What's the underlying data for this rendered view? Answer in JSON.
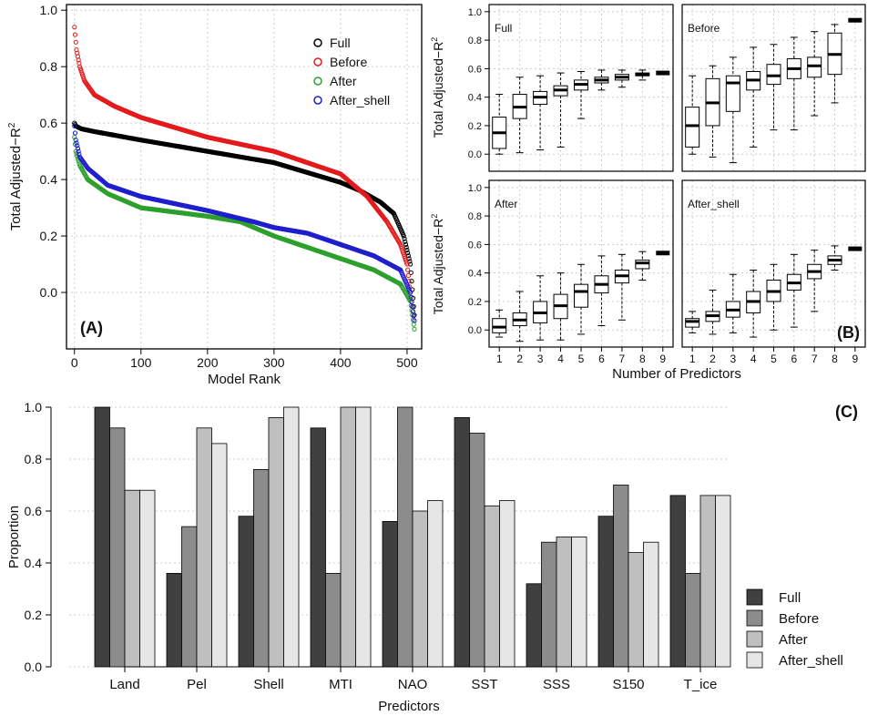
{
  "chart_data": [
    {
      "panel_label": "(A)",
      "type": "scatter",
      "xlabel": "Model Rank",
      "ylabel_main": "Total Adjusted−R",
      "ylabel_sup": "2",
      "xlim": [
        -12,
        522
      ],
      "ylim": [
        -0.2,
        1.02
      ],
      "xticks": [
        0,
        100,
        200,
        300,
        400,
        500
      ],
      "xtick_labels": [
        "0",
        "100",
        "200",
        "300",
        "400",
        "500"
      ],
      "yticks": [
        0.0,
        0.2,
        0.4,
        0.6,
        0.8,
        1.0
      ],
      "ytick_labels": [
        "0.0",
        "0.2",
        "0.4",
        "0.6",
        "0.8",
        "1.0"
      ],
      "n_models": 511,
      "legend_position": "top-right",
      "series": [
        {
          "name": "Full",
          "color": "#000000",
          "x": [
            0,
            2,
            10,
            30,
            100,
            200,
            300,
            400,
            430,
            460,
            480,
            495,
            505,
            511
          ],
          "y": [
            0.6,
            0.59,
            0.58,
            0.57,
            0.54,
            0.5,
            0.46,
            0.39,
            0.36,
            0.32,
            0.28,
            0.2,
            0.1,
            -0.08
          ]
        },
        {
          "name": "Before",
          "color": "#e41a1c",
          "x": [
            0,
            3,
            8,
            15,
            30,
            60,
            100,
            200,
            300,
            400,
            420,
            440,
            470,
            490,
            500,
            505,
            511
          ],
          "y": [
            0.94,
            0.86,
            0.8,
            0.75,
            0.7,
            0.66,
            0.62,
            0.55,
            0.5,
            0.42,
            0.38,
            0.34,
            0.25,
            0.17,
            0.1,
            0.0,
            -0.1
          ]
        },
        {
          "name": "After",
          "color": "#2ca02c",
          "x": [
            0,
            2,
            8,
            20,
            50,
            100,
            200,
            250,
            300,
            350,
            400,
            450,
            490,
            505,
            511
          ],
          "y": [
            0.55,
            0.5,
            0.45,
            0.4,
            0.35,
            0.3,
            0.27,
            0.25,
            0.2,
            0.16,
            0.12,
            0.08,
            0.03,
            -0.03,
            -0.13
          ]
        },
        {
          "name": "After_shell",
          "color": "#1f1fcc",
          "x": [
            0,
            2,
            8,
            20,
            50,
            100,
            200,
            270,
            300,
            350,
            400,
            450,
            490,
            505,
            511
          ],
          "y": [
            0.59,
            0.54,
            0.48,
            0.44,
            0.38,
            0.34,
            0.29,
            0.25,
            0.23,
            0.21,
            0.17,
            0.13,
            0.08,
            0.0,
            -0.1
          ]
        }
      ]
    },
    {
      "panel_label": "(B)",
      "type": "boxplot",
      "xlabel": "Number of Predictors",
      "ylabel_main": "Total Adjusted−R",
      "ylabel_sup": "2",
      "ylim": [
        -0.12,
        1.05
      ],
      "yticks": [
        0.0,
        0.2,
        0.4,
        0.6,
        0.8,
        1.0
      ],
      "ytick_labels": [
        "0.0",
        "0.2",
        "0.4",
        "0.6",
        "0.8",
        "1.0"
      ],
      "categories": [
        "1",
        "2",
        "3",
        "4",
        "5",
        "6",
        "7",
        "8",
        "9"
      ],
      "facets": [
        {
          "name": "Full",
          "boxes": [
            [
              0.0,
              0.04,
              0.15,
              0.26,
              0.42
            ],
            [
              0.01,
              0.25,
              0.33,
              0.42,
              0.54
            ],
            [
              0.03,
              0.35,
              0.4,
              0.44,
              0.55
            ],
            [
              0.05,
              0.41,
              0.45,
              0.48,
              0.57
            ],
            [
              0.25,
              0.45,
              0.49,
              0.52,
              0.58
            ],
            [
              0.45,
              0.5,
              0.52,
              0.54,
              0.59
            ],
            [
              0.47,
              0.52,
              0.54,
              0.56,
              0.59
            ],
            [
              0.52,
              0.55,
              0.56,
              0.57,
              0.59
            ],
            [
              0.57,
              0.57,
              0.57,
              0.57,
              0.57
            ]
          ]
        },
        {
          "name": "Before",
          "boxes": [
            [
              0.0,
              0.05,
              0.2,
              0.33,
              0.55
            ],
            [
              -0.02,
              0.2,
              0.36,
              0.53,
              0.62
            ],
            [
              -0.06,
              0.3,
              0.5,
              0.55,
              0.68
            ],
            [
              0.05,
              0.45,
              0.52,
              0.58,
              0.75
            ],
            [
              0.17,
              0.49,
              0.55,
              0.63,
              0.77
            ],
            [
              0.17,
              0.53,
              0.6,
              0.67,
              0.82
            ],
            [
              0.27,
              0.54,
              0.62,
              0.68,
              0.86
            ],
            [
              0.36,
              0.56,
              0.7,
              0.85,
              0.91
            ],
            [
              0.94,
              0.94,
              0.94,
              0.94,
              0.94
            ]
          ]
        },
        {
          "name": "After",
          "boxes": [
            [
              -0.05,
              -0.02,
              0.02,
              0.08,
              0.14
            ],
            [
              -0.08,
              0.03,
              0.07,
              0.12,
              0.27
            ],
            [
              -0.07,
              0.05,
              0.12,
              0.2,
              0.38
            ],
            [
              -0.07,
              0.08,
              0.17,
              0.25,
              0.4
            ],
            [
              -0.03,
              0.16,
              0.27,
              0.32,
              0.46
            ],
            [
              0.03,
              0.26,
              0.32,
              0.38,
              0.52
            ],
            [
              0.07,
              0.33,
              0.38,
              0.42,
              0.53
            ],
            [
              0.35,
              0.43,
              0.47,
              0.49,
              0.55
            ],
            [
              0.54,
              0.54,
              0.54,
              0.54,
              0.54
            ]
          ]
        },
        {
          "name": "After_shell",
          "boxes": [
            [
              -0.02,
              0.02,
              0.06,
              0.08,
              0.13
            ],
            [
              -0.03,
              0.06,
              0.1,
              0.13,
              0.28
            ],
            [
              -0.02,
              0.09,
              0.14,
              0.2,
              0.39
            ],
            [
              -0.05,
              0.12,
              0.2,
              0.27,
              0.42
            ],
            [
              0.0,
              0.2,
              0.27,
              0.35,
              0.46
            ],
            [
              0.02,
              0.28,
              0.33,
              0.39,
              0.53
            ],
            [
              0.13,
              0.36,
              0.41,
              0.46,
              0.56
            ],
            [
              0.42,
              0.46,
              0.49,
              0.52,
              0.59
            ],
            [
              0.57,
              0.57,
              0.57,
              0.57,
              0.57
            ]
          ]
        }
      ]
    },
    {
      "panel_label": "(C)",
      "type": "bar",
      "xlabel": "Predictors",
      "ylabel": "Proportion",
      "ylim": [
        0.0,
        1.0
      ],
      "yticks": [
        0.0,
        0.2,
        0.4,
        0.6,
        0.8,
        1.0
      ],
      "ytick_labels": [
        "0.0",
        "0.2",
        "0.4",
        "0.6",
        "0.8",
        "1.0"
      ],
      "categories": [
        "Land",
        "Pel",
        "Shell",
        "MTI",
        "NAO",
        "SST",
        "SSS",
        "S150",
        "T_ice"
      ],
      "legend_position": "bottom-right",
      "series": [
        {
          "name": "Full",
          "color": "#404040",
          "values": [
            1.0,
            0.36,
            0.58,
            0.92,
            0.56,
            0.96,
            0.32,
            0.58,
            0.66
          ]
        },
        {
          "name": "Before",
          "color": "#8c8c8c",
          "values": [
            0.92,
            0.54,
            0.76,
            0.36,
            1.0,
            0.9,
            0.48,
            0.7,
            0.36
          ]
        },
        {
          "name": "After",
          "color": "#bfbfbf",
          "values": [
            0.68,
            0.92,
            0.96,
            1.0,
            0.6,
            0.62,
            0.5,
            0.44,
            0.66
          ]
        },
        {
          "name": "After_shell",
          "color": "#e6e6e6",
          "values": [
            0.68,
            0.86,
            1.0,
            1.0,
            0.64,
            0.64,
            0.5,
            0.48,
            0.66
          ]
        }
      ]
    }
  ]
}
